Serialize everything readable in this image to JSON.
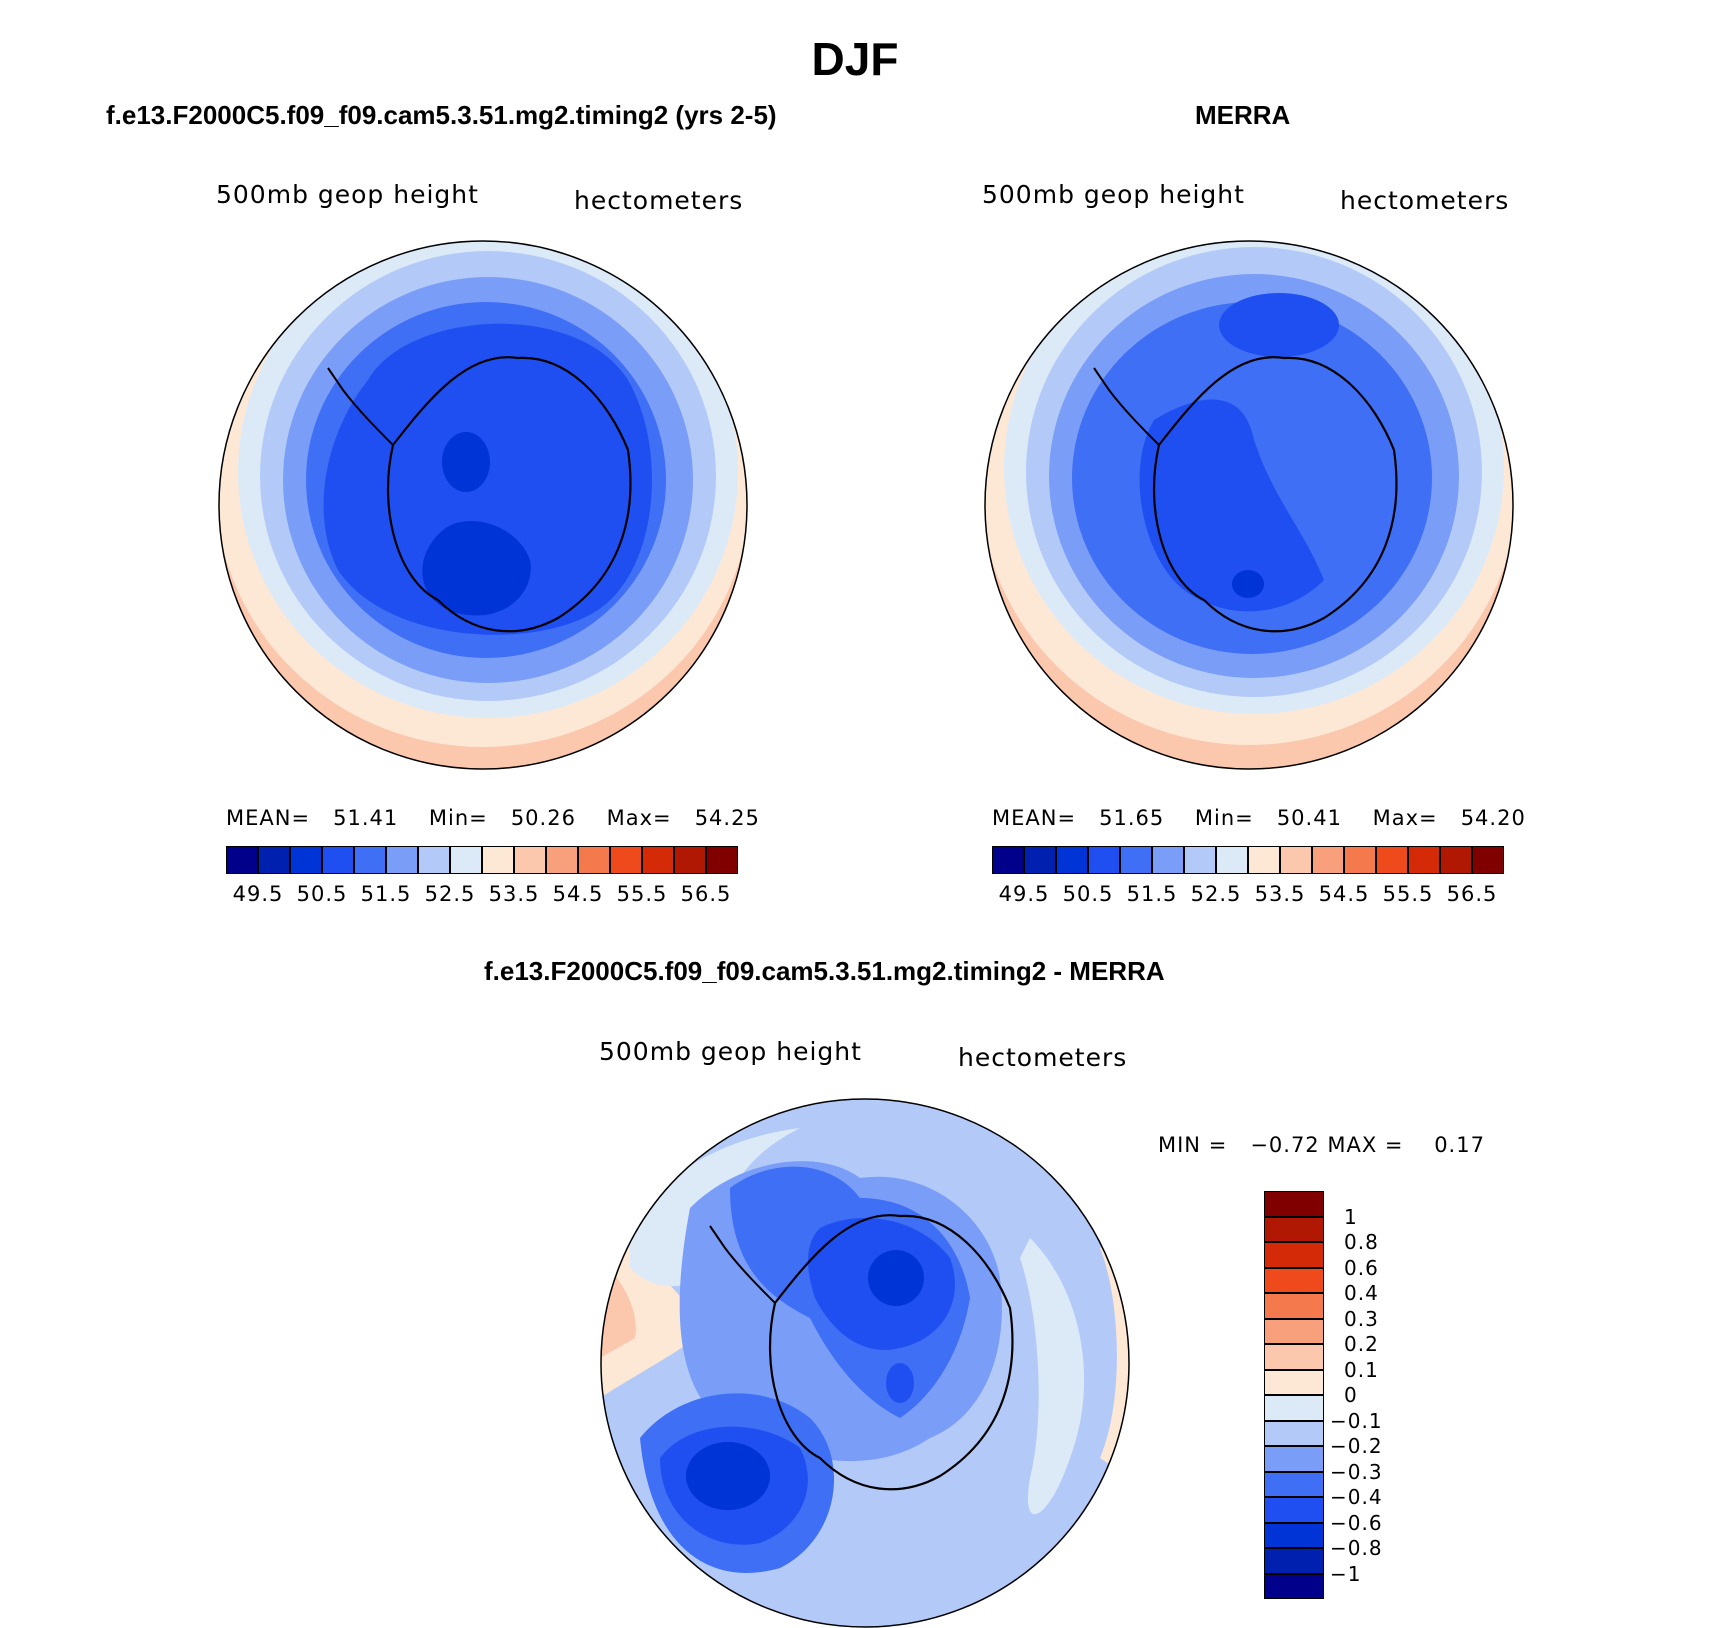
{
  "title": "DJF",
  "panels": [
    {
      "title": "f.e13.F2000C5.f09_f09.cam5.3.51.mg2.timing2 (yrs 2-5)",
      "left_label": "500mb geop height",
      "right_label": "hectometers",
      "stats": {
        "mean_label": "MEAN=",
        "mean": "51.41",
        "min_label": "Min=",
        "min": "50.26",
        "max_label": "Max=",
        "max": "54.25"
      }
    },
    {
      "title": "MERRA",
      "left_label": "500mb geop height",
      "right_label": "hectometers",
      "stats": {
        "mean_label": "MEAN=",
        "mean": "51.65",
        "min_label": "Min=",
        "min": "50.41",
        "max_label": "Max=",
        "max": "54.20"
      }
    },
    {
      "title": "f.e13.F2000C5.f09_f09.cam5.3.51.mg2.timing2 - MERRA",
      "left_label": "500mb geop height",
      "right_label": "hectometers",
      "stats_text": "MIN =   −0.72 MAX =    0.17"
    }
  ],
  "colorbar_horizontal": {
    "colors": [
      "#00008b",
      "#0021b0",
      "#0034d6",
      "#1f4ff0",
      "#3f6ff5",
      "#7a9ef7",
      "#b3caf9",
      "#dceaf8",
      "#fde8d6",
      "#fbc7ad",
      "#f8a07c",
      "#f47a4d",
      "#ee4a1c",
      "#d52a07",
      "#b01803",
      "#800000"
    ],
    "ticks": [
      "49.5",
      "50.5",
      "51.5",
      "52.5",
      "53.5",
      "54.5",
      "55.5",
      "56.5"
    ]
  },
  "colorbar_vertical": {
    "colors": [
      "#800000",
      "#b01803",
      "#d52a07",
      "#ee4a1c",
      "#f47a4d",
      "#f8a07c",
      "#fbc7ad",
      "#fde8d6",
      "#dceaf8",
      "#b3caf9",
      "#7a9ef7",
      "#3f6ff5",
      "#1f4ff0",
      "#0034d6",
      "#0021b0",
      "#00008b"
    ],
    "ticks": [
      "1",
      "0.8",
      "0.6",
      "0.4",
      "0.3",
      "0.2",
      "0.1",
      "0",
      "−0.1",
      "−0.2",
      "−0.3",
      "−0.4",
      "−0.6",
      "−0.8",
      "−1"
    ]
  }
}
